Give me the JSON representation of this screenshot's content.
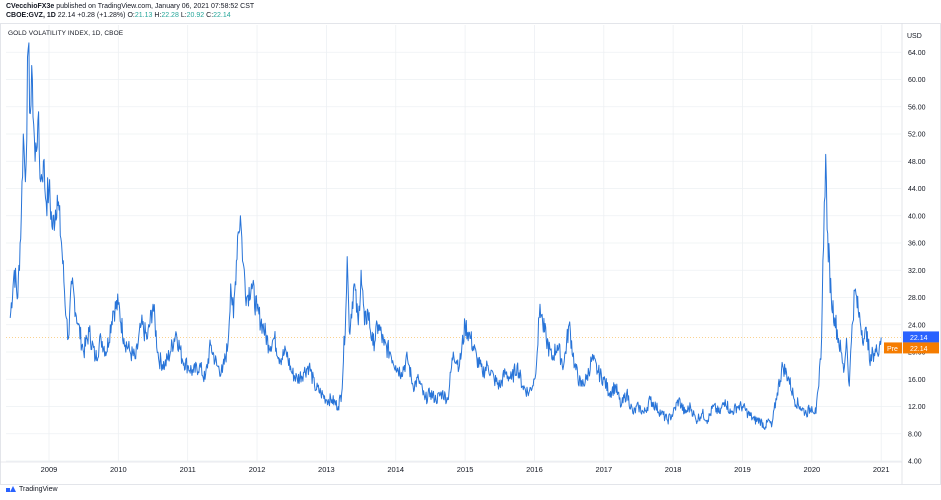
{
  "header": {
    "publisher_name": "CVecchioFX3e",
    "publisher_rest": "published on TradingView.com, January 06, 2021 07:58:52 CST",
    "symbol": "CBOE:GVZ, 1D",
    "last": "22.14",
    "change": "+0.28 (+1.28%)",
    "o_label": "O:",
    "o_val": "21.13",
    "h_label": "H:",
    "h_val": "22.28",
    "l_label": "L:",
    "l_val": "20.92",
    "c_label": "C:",
    "c_val": "22.14"
  },
  "footer": {
    "brand": "TradingView"
  },
  "colors": {
    "line": "#2874d8",
    "price_tag": "#2962ff",
    "pre_tag": "#f57c00",
    "grid": "#edf0f3",
    "text": "#131722"
  },
  "chart_data": {
    "type": "line",
    "title": "GOLD VOLATILITY INDEX, 1D, CBOE",
    "currency_label": "USD",
    "xlim": [
      2008.38,
      2021.3
    ],
    "ylim": [
      4.0,
      68.0
    ],
    "x_ticks": [
      {
        "label": "2009",
        "value": 2009.0
      },
      {
        "label": "2010",
        "value": 2010.0
      },
      {
        "label": "2011",
        "value": 2011.0
      },
      {
        "label": "2012",
        "value": 2012.0
      },
      {
        "label": "2013",
        "value": 2013.0
      },
      {
        "label": "2014",
        "value": 2014.0
      },
      {
        "label": "2015",
        "value": 2015.0
      },
      {
        "label": "2016",
        "value": 2016.0
      },
      {
        "label": "2017",
        "value": 2017.0
      },
      {
        "label": "2018",
        "value": 2018.0
      },
      {
        "label": "2019",
        "value": 2019.0
      },
      {
        "label": "2020",
        "value": 2020.0
      },
      {
        "label": "2021",
        "value": 2021.0
      }
    ],
    "y_ticks": [
      "64.00",
      "60.00",
      "56.00",
      "52.00",
      "48.00",
      "44.00",
      "40.00",
      "36.00",
      "32.00",
      "28.00",
      "24.00",
      "20.00",
      "16.00",
      "12.00",
      "8.00",
      "4.00"
    ],
    "last_price_label": "22.14",
    "pre_market_label": "Pre",
    "pre_market_value": "22.14",
    "series": [
      {
        "values": [
          [
            2008.44,
            25
          ],
          [
            2008.5,
            32
          ],
          [
            2008.55,
            28
          ],
          [
            2008.6,
            40
          ],
          [
            2008.63,
            52
          ],
          [
            2008.66,
            45
          ],
          [
            2008.7,
            64.5
          ],
          [
            2008.73,
            55
          ],
          [
            2008.76,
            60
          ],
          [
            2008.8,
            48
          ],
          [
            2008.84,
            54
          ],
          [
            2008.88,
            45
          ],
          [
            2008.92,
            48
          ],
          [
            2008.96,
            42
          ],
          [
            2009.0,
            44
          ],
          [
            2009.05,
            38
          ],
          [
            2009.12,
            43
          ],
          [
            2009.18,
            36
          ],
          [
            2009.25,
            25
          ],
          [
            2009.28,
            22
          ],
          [
            2009.33,
            30
          ],
          [
            2009.42,
            24
          ],
          [
            2009.5,
            20
          ],
          [
            2009.58,
            23
          ],
          [
            2009.67,
            19
          ],
          [
            2009.75,
            22
          ],
          [
            2009.83,
            20
          ],
          [
            2009.92,
            26
          ],
          [
            2010.0,
            27
          ],
          [
            2010.08,
            22
          ],
          [
            2010.17,
            20
          ],
          [
            2010.25,
            19
          ],
          [
            2010.33,
            24
          ],
          [
            2010.42,
            22
          ],
          [
            2010.5,
            27
          ],
          [
            2010.58,
            19
          ],
          [
            2010.67,
            18
          ],
          [
            2010.75,
            20
          ],
          [
            2010.83,
            23
          ],
          [
            2010.92,
            19
          ],
          [
            2011.0,
            18
          ],
          [
            2011.08,
            17
          ],
          [
            2011.17,
            18
          ],
          [
            2011.25,
            16
          ],
          [
            2011.33,
            21
          ],
          [
            2011.42,
            18
          ],
          [
            2011.5,
            17
          ],
          [
            2011.58,
            21
          ],
          [
            2011.62,
            30
          ],
          [
            2011.66,
            25
          ],
          [
            2011.72,
            37
          ],
          [
            2011.76,
            40
          ],
          [
            2011.8,
            33
          ],
          [
            2011.85,
            28
          ],
          [
            2011.92,
            30
          ],
          [
            2012.0,
            26
          ],
          [
            2012.08,
            24
          ],
          [
            2012.17,
            21
          ],
          [
            2012.25,
            22
          ],
          [
            2012.33,
            19
          ],
          [
            2012.42,
            20
          ],
          [
            2012.5,
            17
          ],
          [
            2012.58,
            16
          ],
          [
            2012.67,
            17
          ],
          [
            2012.75,
            18
          ],
          [
            2012.83,
            15
          ],
          [
            2012.92,
            14
          ],
          [
            2013.0,
            13
          ],
          [
            2013.08,
            13
          ],
          [
            2013.17,
            12
          ],
          [
            2013.22,
            14
          ],
          [
            2013.28,
            26
          ],
          [
            2013.3,
            34
          ],
          [
            2013.33,
            23
          ],
          [
            2013.4,
            30
          ],
          [
            2013.46,
            24
          ],
          [
            2013.5,
            32
          ],
          [
            2013.55,
            24
          ],
          [
            2013.6,
            26
          ],
          [
            2013.67,
            21
          ],
          [
            2013.75,
            24
          ],
          [
            2013.83,
            21
          ],
          [
            2013.92,
            20
          ],
          [
            2014.0,
            18
          ],
          [
            2014.08,
            17
          ],
          [
            2014.17,
            19
          ],
          [
            2014.25,
            15
          ],
          [
            2014.33,
            16
          ],
          [
            2014.42,
            13
          ],
          [
            2014.5,
            14
          ],
          [
            2014.58,
            13
          ],
          [
            2014.67,
            14
          ],
          [
            2014.75,
            13
          ],
          [
            2014.83,
            20
          ],
          [
            2014.92,
            18
          ],
          [
            2015.0,
            24
          ],
          [
            2015.08,
            22
          ],
          [
            2015.17,
            19
          ],
          [
            2015.25,
            17
          ],
          [
            2015.33,
            18
          ],
          [
            2015.42,
            16
          ],
          [
            2015.5,
            15
          ],
          [
            2015.58,
            17
          ],
          [
            2015.67,
            16
          ],
          [
            2015.75,
            18
          ],
          [
            2015.83,
            15
          ],
          [
            2015.92,
            14
          ],
          [
            2016.0,
            16
          ],
          [
            2016.04,
            20
          ],
          [
            2016.08,
            27
          ],
          [
            2016.12,
            24
          ],
          [
            2016.17,
            22
          ],
          [
            2016.25,
            19
          ],
          [
            2016.33,
            21
          ],
          [
            2016.42,
            18
          ],
          [
            2016.5,
            24
          ],
          [
            2016.58,
            18
          ],
          [
            2016.67,
            15
          ],
          [
            2016.75,
            16
          ],
          [
            2016.83,
            19
          ],
          [
            2016.92,
            17
          ],
          [
            2017.0,
            16
          ],
          [
            2017.08,
            14
          ],
          [
            2017.17,
            15
          ],
          [
            2017.25,
            12
          ],
          [
            2017.33,
            14
          ],
          [
            2017.42,
            11
          ],
          [
            2017.5,
            12
          ],
          [
            2017.58,
            11
          ],
          [
            2017.67,
            13
          ],
          [
            2017.75,
            12
          ],
          [
            2017.83,
            11
          ],
          [
            2017.92,
            10
          ],
          [
            2018.0,
            11
          ],
          [
            2018.08,
            13
          ],
          [
            2018.17,
            11
          ],
          [
            2018.25,
            12
          ],
          [
            2018.33,
            10
          ],
          [
            2018.42,
            11
          ],
          [
            2018.5,
            10
          ],
          [
            2018.58,
            12
          ],
          [
            2018.67,
            11
          ],
          [
            2018.75,
            13
          ],
          [
            2018.83,
            11
          ],
          [
            2018.92,
            12
          ],
          [
            2019.0,
            12
          ],
          [
            2019.08,
            11
          ],
          [
            2019.17,
            10
          ],
          [
            2019.25,
            10
          ],
          [
            2019.33,
            9
          ],
          [
            2019.38,
            10
          ],
          [
            2019.42,
            9
          ],
          [
            2019.5,
            14
          ],
          [
            2019.58,
            18
          ],
          [
            2019.67,
            16
          ],
          [
            2019.75,
            13
          ],
          [
            2019.83,
            12
          ],
          [
            2019.92,
            11
          ],
          [
            2020.0,
            12
          ],
          [
            2020.06,
            11
          ],
          [
            2020.1,
            15
          ],
          [
            2020.14,
            22
          ],
          [
            2020.18,
            42
          ],
          [
            2020.2,
            49
          ],
          [
            2020.22,
            38
          ],
          [
            2020.28,
            28
          ],
          [
            2020.33,
            25
          ],
          [
            2020.42,
            20
          ],
          [
            2020.46,
            17
          ],
          [
            2020.5,
            22
          ],
          [
            2020.54,
            15
          ],
          [
            2020.58,
            24
          ],
          [
            2020.62,
            29
          ],
          [
            2020.67,
            26
          ],
          [
            2020.75,
            22
          ],
          [
            2020.8,
            23
          ],
          [
            2020.84,
            18
          ],
          [
            2020.88,
            20
          ],
          [
            2020.94,
            20
          ],
          [
            2021.0,
            22.14
          ]
        ]
      }
    ]
  }
}
